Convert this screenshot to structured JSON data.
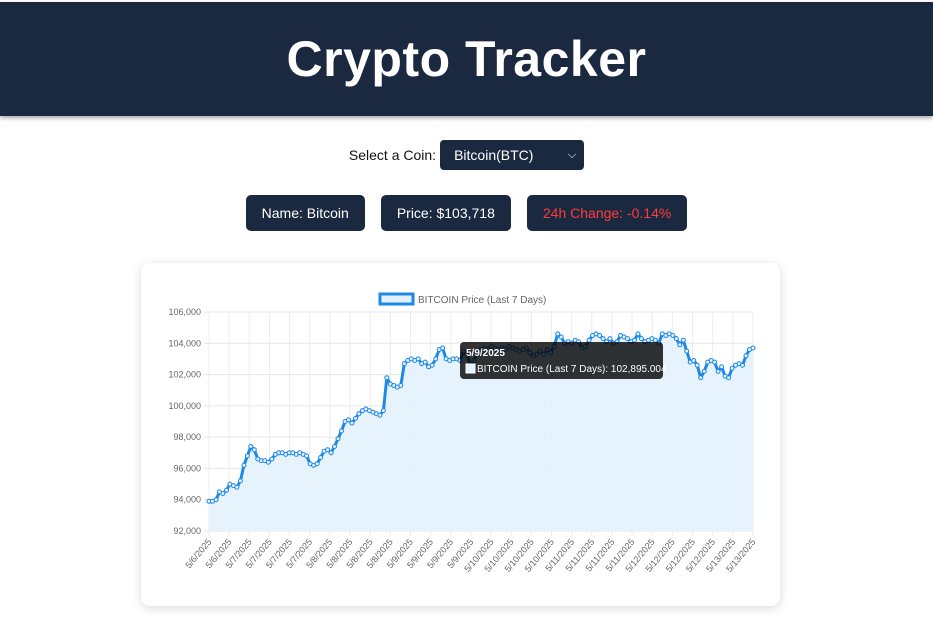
{
  "app": {
    "title": "Crypto Tracker"
  },
  "selector": {
    "label": "Select a Coin:",
    "selected": "Bitcoin(BTC)"
  },
  "stats": {
    "name": "Name: Bitcoin",
    "price": "Price: $103,718",
    "change": "24h Change: -0.14%"
  },
  "tooltip": {
    "title": "5/9/2025",
    "body": "BITCOIN Price (Last 7 Days): 102,895.004"
  },
  "colors": {
    "header_bg": "#1b2940",
    "line": "#1e88e5",
    "fill": "#e3f2fd",
    "negative": "#ff3b3b"
  },
  "chart_data": {
    "type": "line",
    "legend": "BITCOIN Price (Last 7 Days)",
    "legend_position": "top",
    "ylim": [
      92000,
      106000
    ],
    "yticks": [
      "92,000",
      "94,000",
      "96,000",
      "98,000",
      "100,000",
      "102,000",
      "104,000",
      "106,000"
    ],
    "xticks": [
      "5/6/2025",
      "5/6/2025",
      "5/7/2025",
      "5/7/2025",
      "5/7/2025",
      "5/7/2025",
      "5/8/2025",
      "5/8/2025",
      "5/8/2025",
      "5/8/2025",
      "5/9/2025",
      "5/9/2025",
      "5/9/2025",
      "5/9/2025",
      "5/10/2025",
      "5/10/2025",
      "5/10/2025",
      "5/10/2025",
      "5/11/2025",
      "5/11/2025",
      "5/11/2025",
      "5/11/2025",
      "5/12/2025",
      "5/12/2025",
      "5/12/2025",
      "5/12/2025",
      "5/13/2025",
      "5/13/2025"
    ],
    "grid": true,
    "fill": true,
    "values": [
      93900,
      93900,
      94000,
      94500,
      94400,
      94600,
      95000,
      94900,
      94800,
      95200,
      96200,
      96800,
      97400,
      97200,
      96600,
      96500,
      96500,
      96400,
      96600,
      96900,
      97000,
      97000,
      96900,
      97000,
      97000,
      96900,
      97000,
      96900,
      96800,
      96300,
      96200,
      96300,
      96700,
      97100,
      97200,
      97000,
      97400,
      97900,
      98400,
      99000,
      99100,
      98900,
      99200,
      99500,
      99700,
      99800,
      99700,
      99600,
      99500,
      99400,
      99700,
      101800,
      101400,
      101300,
      101200,
      101300,
      102700,
      102900,
      103000,
      102900,
      103000,
      102700,
      102800,
      102500,
      102600,
      103000,
      103600,
      103700,
      103000,
      102900,
      103000,
      103000,
      102900,
      103500,
      103300,
      102500,
      102900,
      103400,
      103600,
      103700,
      103600,
      103800,
      103700,
      103600,
      103700,
      103600,
      103800,
      103700,
      103600,
      103500,
      103600,
      103700,
      103400,
      103200,
      103300,
      103500,
      103300,
      103600,
      103400,
      103800,
      104600,
      104400,
      104000,
      104100,
      104000,
      104200,
      104100,
      103700,
      103800,
      104200,
      104500,
      104600,
      104500,
      104300,
      104100,
      104300,
      104000,
      104100,
      104500,
      104400,
      104300,
      104100,
      104200,
      104600,
      104300,
      104100,
      104200,
      104300,
      104200,
      104000,
      104600,
      104500,
      104600,
      104500,
      104300,
      103900,
      104200,
      103500,
      102800,
      102900,
      102600,
      101800,
      102200,
      102800,
      102900,
      102800,
      102200,
      102500,
      101900,
      101800,
      102400,
      102600,
      102700,
      102600,
      103200,
      103600,
      103700
    ]
  }
}
